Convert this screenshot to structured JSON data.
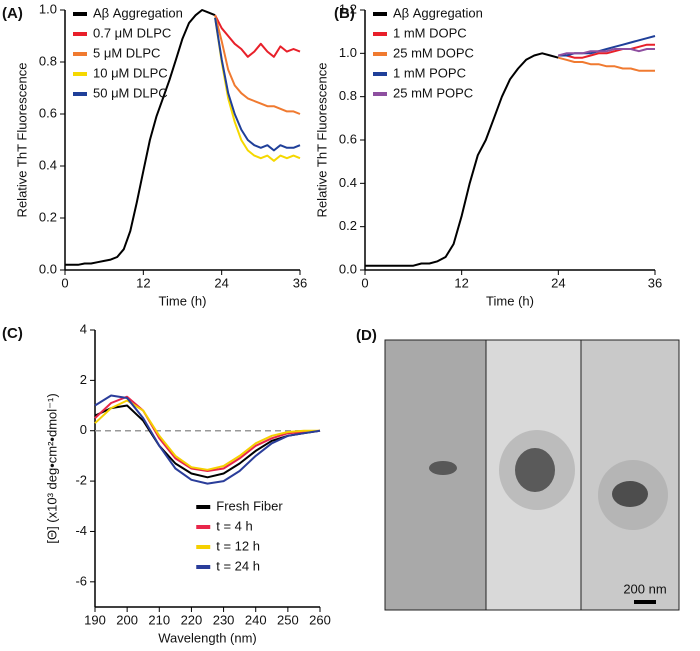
{
  "chart_data": [
    {
      "type": "line",
      "label": "(A)",
      "xlabel": "Time (h)",
      "ylabel": "Relative ThT Fluorescence",
      "x": [
        0,
        1,
        2,
        3,
        4,
        5,
        6,
        7,
        8,
        9,
        10,
        11,
        12,
        13,
        14,
        15,
        16,
        17,
        18,
        19,
        20,
        21,
        22,
        23,
        24,
        25,
        26,
        27,
        28,
        29,
        30,
        31,
        32,
        33,
        34,
        35,
        36
      ],
      "xlim": [
        0,
        36
      ],
      "xticks": [
        0,
        12,
        24,
        36
      ],
      "ylim": [
        0,
        1
      ],
      "yticks": [
        {
          "value": 0,
          "label": "0.0"
        },
        {
          "value": 0.2,
          "label": "0.2"
        },
        {
          "value": 0.4,
          "label": "0.4"
        },
        {
          "value": 0.6,
          "label": "0.6"
        },
        {
          "value": 0.8,
          "label": "0.8"
        },
        {
          "value": 1,
          "label": "1.0"
        }
      ],
      "legend": "upper left",
      "series": [
        {
          "name": "Aβ Aggregation",
          "color": "#000000",
          "values": [
            0.02,
            0.02,
            0.02,
            0.025,
            0.025,
            0.03,
            0.035,
            0.04,
            0.05,
            0.08,
            0.15,
            0.26,
            0.38,
            0.5,
            0.59,
            0.66,
            0.73,
            0.81,
            0.89,
            0.95,
            0.98,
            1.0,
            0.99,
            0.98,
            null,
            null,
            null,
            null,
            null,
            null,
            null,
            null,
            null,
            null,
            null,
            null,
            null
          ]
        },
        {
          "name": "0.7 μM DLPC",
          "color": "#e8202a",
          "values": [
            null,
            null,
            null,
            null,
            null,
            null,
            null,
            null,
            null,
            null,
            null,
            null,
            null,
            null,
            null,
            null,
            null,
            null,
            null,
            null,
            null,
            null,
            null,
            0.98,
            0.93,
            0.9,
            0.87,
            0.85,
            0.82,
            0.84,
            0.87,
            0.84,
            0.82,
            0.86,
            0.84,
            0.85,
            0.84
          ]
        },
        {
          "name": "5 μM DLPC",
          "color": "#f07a30",
          "values": [
            null,
            null,
            null,
            null,
            null,
            null,
            null,
            null,
            null,
            null,
            null,
            null,
            null,
            null,
            null,
            null,
            null,
            null,
            null,
            null,
            null,
            null,
            null,
            0.98,
            0.88,
            0.77,
            0.71,
            0.68,
            0.66,
            0.65,
            0.64,
            0.63,
            0.63,
            0.62,
            0.61,
            0.61,
            0.6
          ]
        },
        {
          "name": "10 μM DLPC",
          "color": "#f5d800",
          "values": [
            null,
            null,
            null,
            null,
            null,
            null,
            null,
            null,
            null,
            null,
            null,
            null,
            null,
            null,
            null,
            null,
            null,
            null,
            null,
            null,
            null,
            null,
            null,
            0.97,
            0.8,
            0.66,
            0.57,
            0.5,
            0.46,
            0.44,
            0.43,
            0.44,
            0.42,
            0.44,
            0.43,
            0.44,
            0.43
          ]
        },
        {
          "name": "50 μM DLPC",
          "color": "#1f3f99",
          "values": [
            null,
            null,
            null,
            null,
            null,
            null,
            null,
            null,
            null,
            null,
            null,
            null,
            null,
            null,
            null,
            null,
            null,
            null,
            null,
            null,
            null,
            null,
            null,
            0.97,
            0.81,
            0.68,
            0.6,
            0.54,
            0.5,
            0.48,
            0.47,
            0.48,
            0.46,
            0.48,
            0.47,
            0.47,
            0.48
          ]
        }
      ]
    },
    {
      "type": "line",
      "label": "(B)",
      "xlabel": "Time (h)",
      "ylabel": "Relative ThT Fluorescence",
      "x": [
        0,
        1,
        2,
        3,
        4,
        5,
        6,
        7,
        8,
        9,
        10,
        11,
        12,
        13,
        14,
        15,
        16,
        17,
        18,
        19,
        20,
        21,
        22,
        23,
        24,
        25,
        26,
        27,
        28,
        29,
        30,
        31,
        32,
        33,
        34,
        35,
        36
      ],
      "xlim": [
        0,
        36
      ],
      "xticks": [
        0,
        12,
        24,
        36
      ],
      "ylim": [
        0,
        1.2
      ],
      "yticks": [
        {
          "value": 0,
          "label": "0.0"
        },
        {
          "value": 0.2,
          "label": "0.2"
        },
        {
          "value": 0.4,
          "label": "0.4"
        },
        {
          "value": 0.6,
          "label": "0.6"
        },
        {
          "value": 0.8,
          "label": "0.8"
        },
        {
          "value": 1,
          "label": "1.0"
        },
        {
          "value": 1.2,
          "label": "1.2"
        }
      ],
      "legend": "upper left",
      "series": [
        {
          "name": "Aβ Aggregation",
          "color": "#000000",
          "values": [
            0.02,
            0.02,
            0.02,
            0.02,
            0.02,
            0.02,
            0.02,
            0.03,
            0.03,
            0.04,
            0.06,
            0.12,
            0.25,
            0.4,
            0.53,
            0.6,
            0.7,
            0.8,
            0.88,
            0.93,
            0.97,
            0.99,
            1.0,
            0.99,
            0.98,
            null,
            null,
            null,
            null,
            null,
            null,
            null,
            null,
            null,
            null,
            null,
            null
          ]
        },
        {
          "name": "1 mM DOPC",
          "color": "#e8202a",
          "values": [
            null,
            null,
            null,
            null,
            null,
            null,
            null,
            null,
            null,
            null,
            null,
            null,
            null,
            null,
            null,
            null,
            null,
            null,
            null,
            null,
            null,
            null,
            null,
            null,
            0.99,
            0.99,
            0.98,
            0.98,
            0.99,
            1.0,
            1.0,
            1.01,
            1.02,
            1.02,
            1.03,
            1.04,
            1.04
          ]
        },
        {
          "name": "25 mM DOPC",
          "color": "#f07a30",
          "values": [
            null,
            null,
            null,
            null,
            null,
            null,
            null,
            null,
            null,
            null,
            null,
            null,
            null,
            null,
            null,
            null,
            null,
            null,
            null,
            null,
            null,
            null,
            null,
            null,
            0.98,
            0.97,
            0.96,
            0.96,
            0.95,
            0.95,
            0.94,
            0.94,
            0.93,
            0.93,
            0.92,
            0.92,
            0.92
          ]
        },
        {
          "name": "1 mM POPC",
          "color": "#1f3f99",
          "values": [
            null,
            null,
            null,
            null,
            null,
            null,
            null,
            null,
            null,
            null,
            null,
            null,
            null,
            null,
            null,
            null,
            null,
            null,
            null,
            null,
            null,
            null,
            null,
            null,
            0.99,
            0.99,
            1.0,
            1.0,
            1.0,
            1.01,
            1.02,
            1.03,
            1.04,
            1.05,
            1.06,
            1.07,
            1.08
          ]
        },
        {
          "name": "25 mM POPC",
          "color": "#8e4fa0",
          "values": [
            null,
            null,
            null,
            null,
            null,
            null,
            null,
            null,
            null,
            null,
            null,
            null,
            null,
            null,
            null,
            null,
            null,
            null,
            null,
            null,
            null,
            null,
            null,
            null,
            0.99,
            1.0,
            1.0,
            1.0,
            1.01,
            1.01,
            1.01,
            1.02,
            1.02,
            1.02,
            1.01,
            1.02,
            1.02
          ]
        }
      ]
    },
    {
      "type": "line",
      "label": "(C)",
      "xlabel": "Wavelength (nm)",
      "ylabel": "[Θ] (x10³ deg•cm²•dmol⁻¹)",
      "x": [
        190,
        195,
        200,
        205,
        210,
        215,
        220,
        225,
        230,
        235,
        240,
        245,
        250,
        255,
        260
      ],
      "xlim": [
        190,
        260
      ],
      "xticks": [
        190,
        200,
        210,
        220,
        230,
        240,
        250,
        260
      ],
      "ylim": [
        -7,
        4
      ],
      "yticks": [
        4,
        2,
        0,
        -2,
        -4,
        -6
      ],
      "reference_line": 0,
      "legend": "lower right",
      "series": [
        {
          "name": "Fresh Fiber",
          "color": "#000000",
          "values": [
            0.6,
            0.9,
            1.0,
            0.4,
            -0.6,
            -1.3,
            -1.7,
            -1.85,
            -1.7,
            -1.3,
            -0.8,
            -0.4,
            -0.2,
            -0.1,
            0
          ]
        },
        {
          "name": "t = 4 h",
          "color": "#e8264a",
          "values": [
            0.5,
            1.1,
            1.35,
            0.8,
            -0.3,
            -1.1,
            -1.5,
            -1.6,
            -1.5,
            -1.1,
            -0.6,
            -0.3,
            -0.1,
            -0.05,
            0
          ]
        },
        {
          "name": "t = 12 h",
          "color": "#f5d000",
          "values": [
            0.3,
            0.9,
            1.2,
            0.8,
            -0.2,
            -1.0,
            -1.45,
            -1.55,
            -1.4,
            -1.0,
            -0.5,
            -0.2,
            -0.05,
            0,
            0
          ]
        },
        {
          "name": "t = 24 h",
          "color": "#2a3d9a",
          "values": [
            1.0,
            1.4,
            1.3,
            0.5,
            -0.6,
            -1.5,
            -1.95,
            -2.1,
            -2.0,
            -1.6,
            -1.0,
            -0.5,
            -0.2,
            -0.1,
            0
          ]
        }
      ]
    }
  ],
  "image_panel": {
    "label": "(D)",
    "scale_bar": "200 nm"
  }
}
